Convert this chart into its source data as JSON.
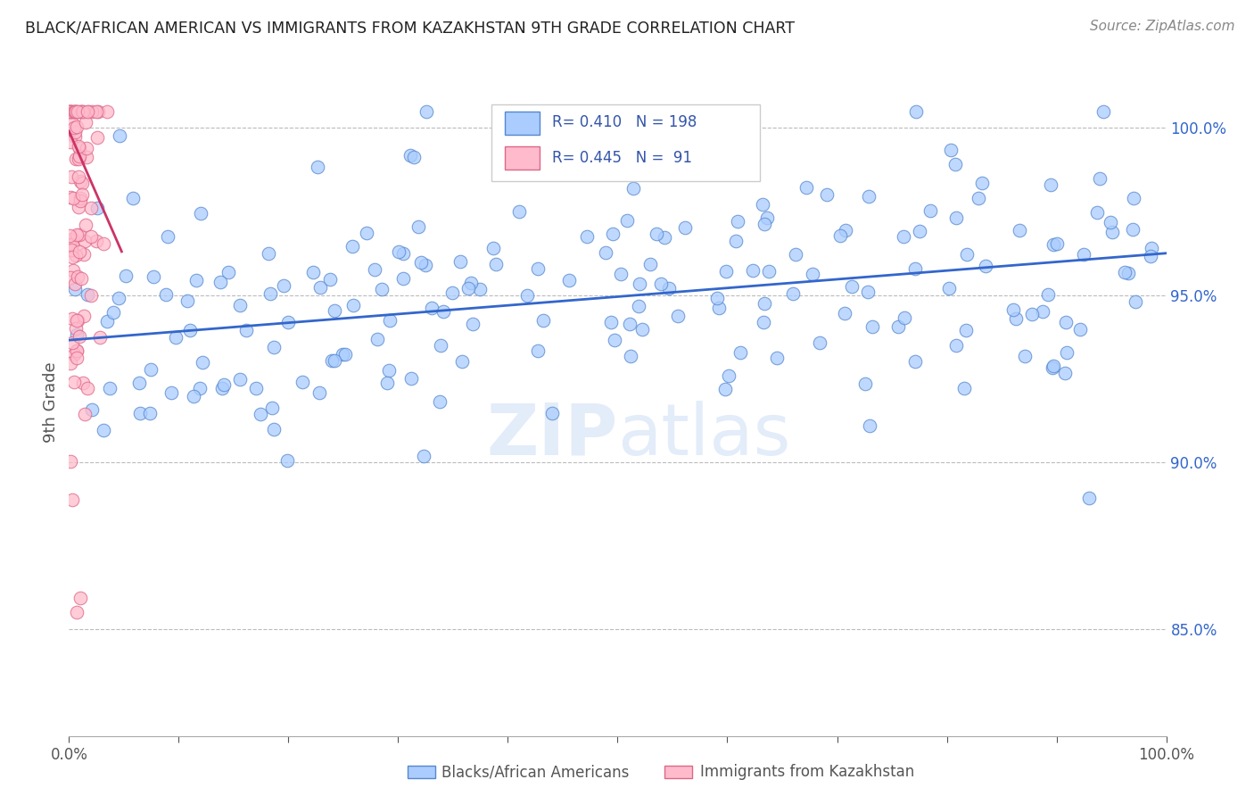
{
  "title": "BLACK/AFRICAN AMERICAN VS IMMIGRANTS FROM KAZAKHSTAN 9TH GRADE CORRELATION CHART",
  "source_text": "Source: ZipAtlas.com",
  "ylabel": "9th Grade",
  "ytick_labels": [
    "85.0%",
    "90.0%",
    "95.0%",
    "100.0%"
  ],
  "ytick_values": [
    0.85,
    0.9,
    0.95,
    1.0
  ],
  "xmin": 0.0,
  "xmax": 1.0,
  "ymin": 0.818,
  "ymax": 1.018,
  "blue_R": "0.410",
  "blue_N": "198",
  "pink_R": "0.445",
  "pink_N": "91",
  "blue_line_color": "#3366cc",
  "pink_line_color": "#cc3366",
  "blue_scatter_face": "#aaccff",
  "blue_scatter_edge": "#5588cc",
  "pink_scatter_face": "#ffbbcc",
  "pink_scatter_edge": "#dd6688",
  "legend_label_blue": "Blacks/African Americans",
  "legend_label_pink": "Immigrants from Kazakhstan",
  "background_color": "#ffffff",
  "grid_color": "#bbbbbb",
  "title_color": "#222222",
  "axis_label_color": "#555555",
  "legend_text_color": "#3355aa",
  "blue_seed": 42,
  "pink_seed": 99,
  "blue_trend_x0": 0.0,
  "blue_trend_x1": 1.0,
  "blue_trend_y0": 0.9365,
  "blue_trend_y1": 0.9625,
  "pink_trend_x0": 0.0,
  "pink_trend_x1": 0.048,
  "pink_trend_y0": 0.999,
  "pink_trend_y1": 0.963
}
